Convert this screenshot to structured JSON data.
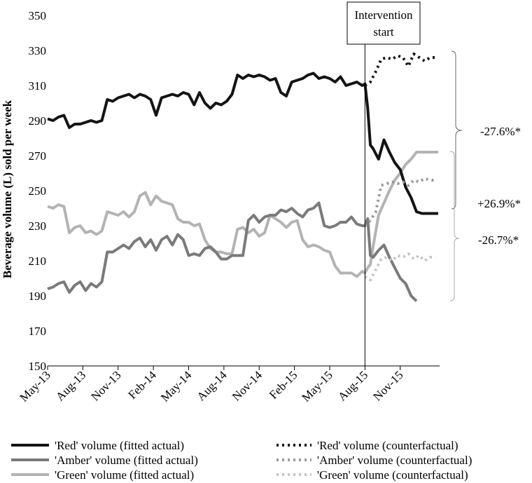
{
  "chart_data": {
    "type": "line",
    "title": "",
    "xlabel": "",
    "ylabel": "Beverage volume (L) sold per week",
    "ylim": [
      150,
      350
    ],
    "yticks": [
      150,
      170,
      190,
      210,
      230,
      250,
      270,
      290,
      310,
      330,
      350
    ],
    "xticks": [
      "May-13",
      "Aug-13",
      "Nov-13",
      "Feb-14",
      "May-14",
      "Aug-14",
      "Nov-14",
      "Feb-15",
      "May-15",
      "Aug-15",
      "Nov-15"
    ],
    "grid": false,
    "legend_position": "bottom",
    "intervention": {
      "label_line1": "Intervention",
      "label_line2": "start",
      "x_week": 117
    },
    "annotations": [
      {
        "text": "-27.6%*",
        "series": "Red"
      },
      {
        "text": "+26.9%*",
        "series": "Green"
      },
      {
        "text": "-26.7%*",
        "series": "Amber"
      }
    ],
    "colors": {
      "red": "#141414",
      "amber": "#7a7a7a",
      "green": "#b3b3b3",
      "amber_cf": "#9a9a9a",
      "green_cf": "#c4c4c4"
    },
    "series": [
      {
        "name": "'Red' volume (fitted actual)",
        "key": "red",
        "style": "solid",
        "x": [
          0,
          2,
          4,
          6,
          8,
          10,
          12,
          14,
          16,
          18,
          20,
          22,
          24,
          26,
          28,
          30,
          32,
          34,
          36,
          38,
          40,
          42,
          44,
          46,
          48,
          50,
          52,
          54,
          56,
          58,
          60,
          62,
          64,
          66,
          68,
          70,
          72,
          74,
          76,
          78,
          80,
          82,
          84,
          86,
          88,
          90,
          92,
          94,
          96,
          98,
          100,
          102,
          104,
          106,
          108,
          110,
          112,
          114,
          116,
          117,
          118,
          119,
          120,
          122,
          124,
          126,
          128,
          130,
          132,
          134,
          136,
          138,
          140,
          142,
          144
        ],
        "y": [
          291,
          290,
          292,
          293,
          286,
          288,
          288,
          289,
          290,
          289,
          290,
          302,
          301,
          303,
          304,
          305,
          303,
          305,
          304,
          302,
          293,
          303,
          304,
          305,
          304,
          306,
          305,
          299,
          306,
          300,
          297,
          300,
          299,
          301,
          305,
          316,
          314,
          316,
          315,
          316,
          315,
          313,
          314,
          306,
          304,
          312,
          313,
          314,
          316,
          317,
          314,
          315,
          314,
          312,
          315,
          310,
          311,
          312,
          310,
          311,
          297,
          276,
          274,
          268,
          279,
          272,
          266,
          262,
          252,
          246,
          238,
          237,
          237,
          237,
          237
        ]
      },
      {
        "name": "'Amber' volume (fitted actual)",
        "key": "amber",
        "style": "solid",
        "x": [
          0,
          2,
          4,
          6,
          8,
          10,
          12,
          14,
          16,
          18,
          20,
          22,
          24,
          26,
          28,
          30,
          32,
          34,
          36,
          38,
          40,
          42,
          44,
          46,
          48,
          50,
          52,
          54,
          56,
          58,
          60,
          62,
          64,
          66,
          68,
          70,
          72,
          74,
          76,
          78,
          80,
          82,
          84,
          86,
          88,
          90,
          92,
          94,
          96,
          98,
          100,
          102,
          104,
          106,
          108,
          110,
          112,
          114,
          116,
          117,
          118,
          119,
          120,
          122,
          124,
          126,
          128,
          130,
          132,
          134,
          136
        ],
        "y": [
          194,
          195,
          197,
          198,
          192,
          196,
          198,
          193,
          197,
          195,
          198,
          215,
          215,
          217,
          219,
          217,
          221,
          223,
          218,
          222,
          216,
          222,
          224,
          219,
          225,
          222,
          213,
          214,
          213,
          217,
          218,
          215,
          211,
          211,
          213,
          213,
          213,
          233,
          236,
          232,
          235,
          236,
          236,
          239,
          238,
          240,
          237,
          235,
          239,
          240,
          243,
          230,
          229,
          230,
          232,
          232,
          235,
          231,
          230,
          230,
          234,
          213,
          212,
          216,
          219,
          212,
          206,
          200,
          197,
          190,
          187
        ]
      },
      {
        "name": "'Green' volume (fitted actual)",
        "key": "green",
        "style": "solid",
        "x": [
          0,
          2,
          4,
          6,
          8,
          10,
          12,
          14,
          16,
          18,
          20,
          22,
          24,
          26,
          28,
          30,
          32,
          34,
          36,
          38,
          40,
          42,
          44,
          46,
          48,
          50,
          52,
          54,
          56,
          58,
          60,
          62,
          64,
          66,
          68,
          70,
          72,
          74,
          76,
          78,
          80,
          82,
          84,
          86,
          88,
          90,
          92,
          94,
          96,
          98,
          100,
          102,
          104,
          106,
          108,
          110,
          112,
          114,
          116,
          117,
          118,
          119,
          120,
          122,
          124,
          126,
          128,
          130,
          132,
          134,
          136,
          138,
          140,
          142,
          144
        ],
        "y": [
          241,
          240,
          242,
          241,
          226,
          229,
          230,
          226,
          227,
          225,
          227,
          238,
          237,
          236,
          238,
          235,
          238,
          247,
          249,
          242,
          247,
          244,
          243,
          242,
          234,
          232,
          232,
          230,
          231,
          222,
          217,
          215,
          215,
          214,
          214,
          228,
          229,
          226,
          228,
          224,
          226,
          236,
          234,
          232,
          229,
          232,
          233,
          222,
          218,
          219,
          218,
          216,
          215,
          207,
          203,
          203,
          203,
          201,
          204,
          203,
          206,
          208,
          218,
          236,
          243,
          250,
          256,
          260,
          265,
          268,
          272,
          272,
          272,
          272,
          272
        ]
      },
      {
        "name": "'Red' volume (counterfactual)",
        "key": "red",
        "style": "dotted",
        "x": [
          117,
          119,
          121,
          123,
          125,
          127,
          129,
          131,
          133,
          135,
          137,
          139,
          141,
          143
        ],
        "y": [
          310,
          312,
          318,
          325,
          326,
          325,
          327,
          326,
          321,
          328,
          326,
          324,
          326,
          326
        ]
      },
      {
        "name": "'Amber' volume (counterfactual)",
        "key": "amber_cf",
        "style": "dotted",
        "x": [
          117,
          119,
          121,
          123,
          125,
          127,
          129,
          131,
          133,
          135,
          137,
          139,
          141,
          143
        ],
        "y": [
          230,
          233,
          238,
          253,
          254,
          255,
          254,
          255,
          253,
          256,
          255,
          257,
          256,
          256
        ]
      },
      {
        "name": "'Green' volume (counterfactual)",
        "key": "green_cf",
        "style": "dotted",
        "x": [
          117,
          119,
          121,
          123,
          125,
          127,
          129,
          131,
          133,
          135,
          137,
          139,
          141,
          143
        ],
        "y": [
          201,
          199,
          205,
          211,
          212,
          210,
          213,
          212,
          214,
          211,
          213,
          210,
          212,
          212
        ]
      }
    ]
  }
}
